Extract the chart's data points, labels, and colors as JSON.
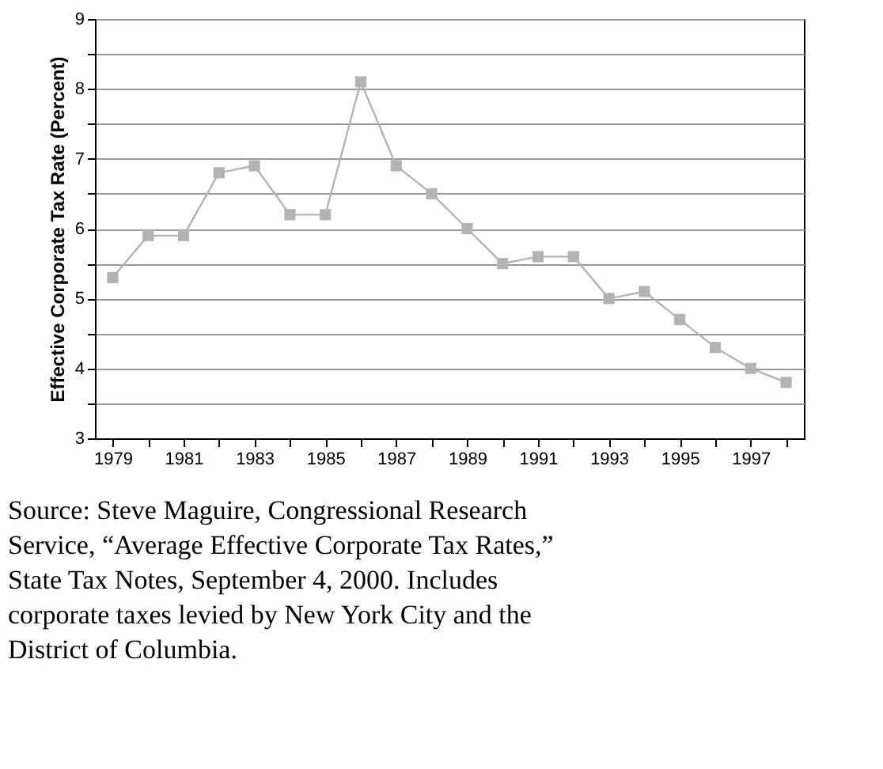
{
  "chart_data": {
    "type": "line",
    "ylabel": "Effective Corporate Tax Rate (Percent)",
    "x": [
      1979,
      1980,
      1981,
      1982,
      1983,
      1984,
      1985,
      1986,
      1987,
      1988,
      1989,
      1990,
      1991,
      1992,
      1993,
      1994,
      1995,
      1996,
      1997,
      1998
    ],
    "series": [
      {
        "color": "#b3b3b3",
        "values": [
          5.3,
          5.9,
          5.9,
          6.8,
          6.9,
          6.2,
          6.2,
          8.1,
          6.9,
          6.5,
          6.0,
          5.5,
          5.6,
          5.6,
          5.0,
          5.1,
          4.7,
          4.3,
          4.0,
          3.8
        ]
      }
    ],
    "xlim": [
      1978.5,
      1998.5
    ],
    "xticks": [
      1979,
      {
        "value": 1980,
        "label": null
      },
      1981,
      {
        "value": 1982,
        "label": null
      },
      1983,
      {
        "value": 1984,
        "label": null
      },
      1985,
      {
        "value": 1986,
        "label": null
      },
      1987,
      {
        "value": 1988,
        "label": null
      },
      1989,
      {
        "value": 1990,
        "label": null
      },
      1991,
      {
        "value": 1992,
        "label": null
      },
      1993,
      {
        "value": 1994,
        "label": null
      },
      1995,
      {
        "value": 1996,
        "label": null
      },
      1997,
      {
        "value": 1998,
        "label": null
      }
    ],
    "ylim": [
      3,
      9
    ],
    "yticks": [
      3,
      {
        "value": 3.5,
        "label": null
      },
      4,
      {
        "value": 4.5,
        "label": null
      },
      5,
      {
        "value": 5.5,
        "label": null
      },
      6,
      {
        "value": 6.5,
        "label": null
      },
      7,
      {
        "value": 7.5,
        "label": null
      },
      8,
      {
        "value": 8.5,
        "label": null
      },
      9
    ],
    "grid": "y",
    "marker": "square",
    "line_style": "solid",
    "annotations": [
      "Source:  Steve Maguire, Congressional Research Service, “Average Effective Corporate Tax Rates,” State Tax Notes, September 4, 2000.  Includes corporate taxes levied by New York City and the District of Columbia."
    ]
  }
}
